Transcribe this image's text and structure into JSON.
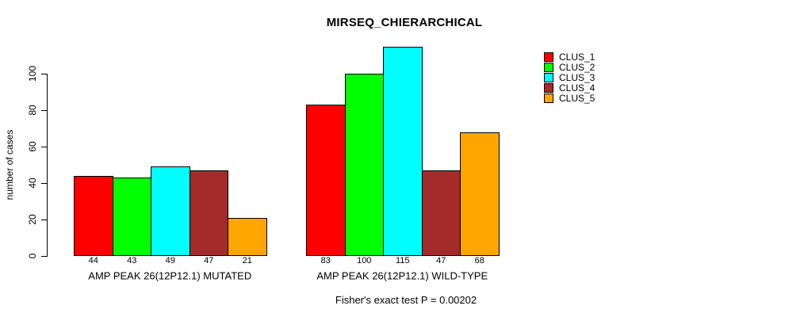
{
  "title": "MIRSEQ_CHIERARCHICAL",
  "ylabel": "number of cases",
  "footer": "Fisher's exact test P = 0.00202",
  "legend": {
    "position": "right",
    "entries": [
      {
        "label": "CLUS_1",
        "color": "#FF0000"
      },
      {
        "label": "CLUS_2",
        "color": "#00FF00"
      },
      {
        "label": "CLUS_3",
        "color": "#00FFFF"
      },
      {
        "label": "CLUS_4",
        "color": "#A52A2A"
      },
      {
        "label": "CLUS_5",
        "color": "#FFA500"
      }
    ]
  },
  "chart_data": {
    "type": "bar",
    "title": "MIRSEQ_CHIERARCHICAL",
    "xlabel": "",
    "ylabel": "number of cases",
    "yticks": [
      0,
      20,
      40,
      60,
      80,
      100
    ],
    "ylim": [
      0,
      115
    ],
    "grid": false,
    "legend_position": "right",
    "bar_value_labels": true,
    "groups": [
      "AMP PEAK 26(12P12.1) MUTATED",
      "AMP PEAK 26(12P12.1) WILD-TYPE"
    ],
    "series": [
      {
        "name": "CLUS_1",
        "color": "#FF0000",
        "values": [
          44,
          83
        ]
      },
      {
        "name": "CLUS_2",
        "color": "#00FF00",
        "values": [
          43,
          100
        ]
      },
      {
        "name": "CLUS_3",
        "color": "#00FFFF",
        "values": [
          49,
          115
        ]
      },
      {
        "name": "CLUS_4",
        "color": "#A52A2A",
        "values": [
          47,
          47
        ]
      },
      {
        "name": "CLUS_5",
        "color": "#FFA500",
        "values": [
          21,
          68
        ]
      }
    ],
    "annotation": "Fisher's exact test P = 0.00202"
  }
}
